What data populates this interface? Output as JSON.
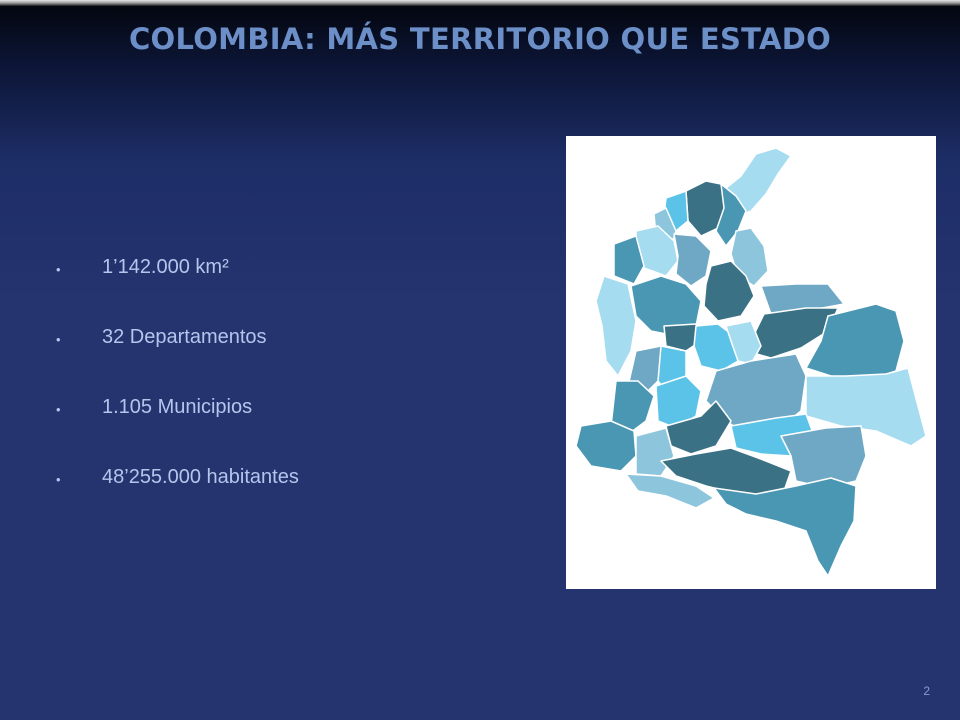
{
  "slide": {
    "title": "COLOMBIA: MÁS TERRITORIO QUE ESTADO",
    "bullets": [
      "1’142.000 km²",
      "32 Departamentos",
      "1.105 Municipios",
      "48’255.000 habitantes"
    ],
    "page_number": "2"
  },
  "map": {
    "icon": "colombia-departments-map",
    "colors": [
      "#3a7185",
      "#4a97b4",
      "#6fa8c4",
      "#8dc6dc",
      "#5cc3e8",
      "#a6dcef"
    ]
  }
}
